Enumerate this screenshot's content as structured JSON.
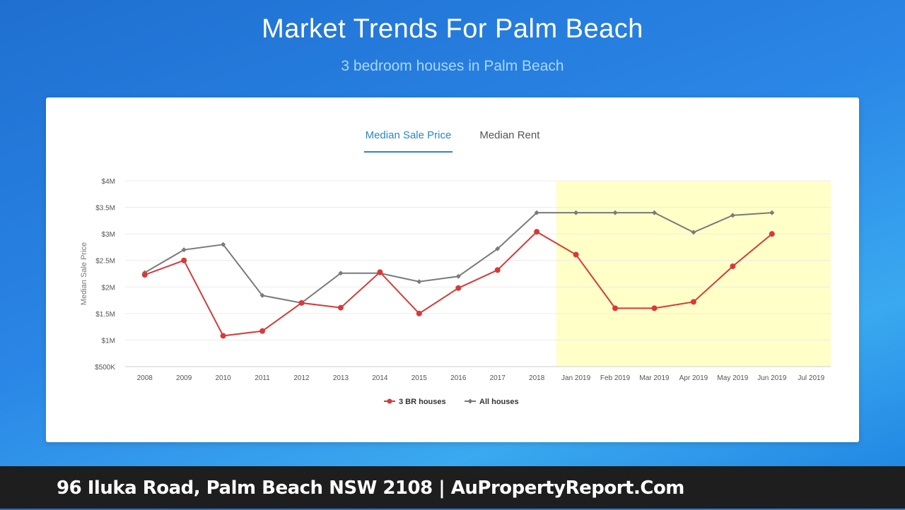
{
  "header": {
    "title": "Market Trends For Palm Beach",
    "subtitle": "3 bedroom houses in Palm Beach"
  },
  "tabs": [
    {
      "label": "Median Sale Price",
      "active": true
    },
    {
      "label": "Median Rent",
      "active": false
    }
  ],
  "footer": {
    "text": "96 Iluka Road, Palm Beach NSW 2108 | AuPropertyReport.Com"
  },
  "colors": {
    "series_3br": "#d63a3a",
    "series_all": "#7a7a7a",
    "highlight": "#ffffc8",
    "tab_active": "#2b86c9"
  },
  "chart_data": {
    "type": "line",
    "ylabel": "Median Sale Price",
    "categories": [
      "2008",
      "2009",
      "2010",
      "2011",
      "2012",
      "2013",
      "2014",
      "2015",
      "2016",
      "2017",
      "2018",
      "Jan 2019",
      "Feb 2019",
      "Mar 2019",
      "Apr 2019",
      "May 2019",
      "Jun 2019",
      "Jul 2019"
    ],
    "y_ticks": [
      {
        "value": 500000,
        "label": "$500K"
      },
      {
        "value": 1000000,
        "label": "$1M"
      },
      {
        "value": 1500000,
        "label": "$1.5M"
      },
      {
        "value": 2000000,
        "label": "$2M"
      },
      {
        "value": 2500000,
        "label": "$2.5M"
      },
      {
        "value": 3000000,
        "label": "$3M"
      },
      {
        "value": 3500000,
        "label": "$3.5M"
      },
      {
        "value": 4000000,
        "label": "$4M"
      }
    ],
    "ylim": [
      500000,
      4000000
    ],
    "highlight_range": [
      "Jan 2019",
      "Jul 2019"
    ],
    "legend_position": "bottom",
    "series": [
      {
        "name": "3 BR houses",
        "marker": "circle",
        "values": [
          2230000,
          2500000,
          1080000,
          1170000,
          1700000,
          1610000,
          2280000,
          1500000,
          1980000,
          2320000,
          3040000,
          2610000,
          1600000,
          1600000,
          1720000,
          2390000,
          3000000,
          null
        ]
      },
      {
        "name": "All houses",
        "marker": "diamond",
        "values": [
          2270000,
          2700000,
          2800000,
          1840000,
          1700000,
          2260000,
          2260000,
          2100000,
          2200000,
          2720000,
          3400000,
          3400000,
          3400000,
          3400000,
          3030000,
          3350000,
          3400000,
          null
        ]
      }
    ]
  }
}
